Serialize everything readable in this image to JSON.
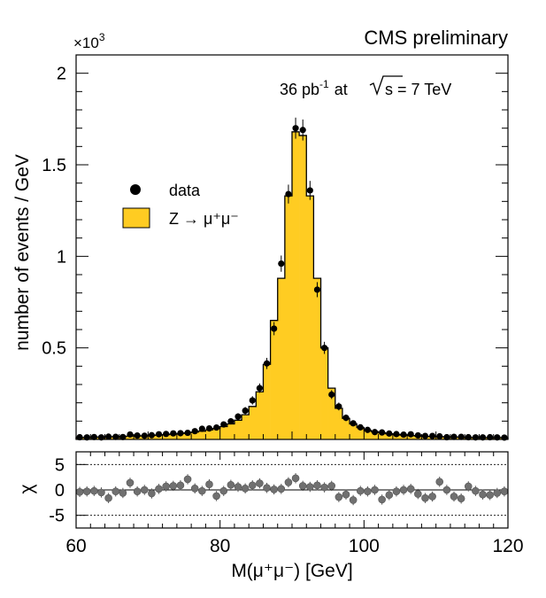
{
  "chart_data": {
    "type": "bar",
    "title": "CMS preliminary",
    "annotation": {
      "lumi": "36 pb",
      "lumi_sup": "-1",
      "at": "at",
      "energy_lhs": "s",
      "energy_rhs": "= 7 TeV"
    },
    "xlabel": "M(μ⁺μ⁻)     [GeV]",
    "xlim": [
      60,
      120
    ],
    "x_ticks": [
      "60",
      "80",
      "100",
      "120"
    ],
    "main": {
      "ylabel": "number of events / GeV",
      "y_multiplier": "×10",
      "y_multiplier_exp": "3",
      "ylim": [
        0,
        2.1
      ],
      "y_ticks": [
        "0.5",
        "1",
        "1.5",
        "2"
      ],
      "legend": {
        "placement": "middle-left",
        "data_label": "data",
        "mc_label": "Z → μ⁺μ⁻"
      },
      "bins_lo": [
        60,
        61,
        62,
        63,
        64,
        65,
        66,
        67,
        68,
        69,
        70,
        71,
        72,
        73,
        74,
        75,
        76,
        77,
        78,
        79,
        80,
        81,
        82,
        83,
        84,
        85,
        86,
        87,
        88,
        89,
        90,
        91,
        92,
        93,
        94,
        95,
        96,
        97,
        98,
        99,
        100,
        101,
        102,
        103,
        104,
        105,
        106,
        107,
        108,
        109,
        110,
        111,
        112,
        113,
        114,
        115,
        116,
        117,
        118,
        119
      ],
      "mc": [
        0.01,
        0.011,
        0.012,
        0.013,
        0.014,
        0.015,
        0.016,
        0.018,
        0.019,
        0.02,
        0.022,
        0.024,
        0.026,
        0.029,
        0.032,
        0.036,
        0.04,
        0.045,
        0.052,
        0.06,
        0.07,
        0.085,
        0.105,
        0.135,
        0.18,
        0.26,
        0.41,
        0.65,
        0.88,
        1.33,
        1.68,
        1.66,
        1.33,
        0.88,
        0.5,
        0.28,
        0.17,
        0.115,
        0.085,
        0.065,
        0.05,
        0.042,
        0.036,
        0.031,
        0.027,
        0.024,
        0.021,
        0.019,
        0.017,
        0.016,
        0.015,
        0.014,
        0.013,
        0.012,
        0.011,
        0.01,
        0.01,
        0.01,
        0.01,
        0.009
      ],
      "data": [
        0.012,
        0.011,
        0.013,
        0.011,
        0.015,
        0.014,
        0.013,
        0.027,
        0.021,
        0.02,
        0.023,
        0.028,
        0.03,
        0.033,
        0.034,
        0.036,
        0.045,
        0.058,
        0.06,
        0.065,
        0.082,
        0.099,
        0.125,
        0.157,
        0.213,
        0.28,
        0.415,
        0.605,
        0.96,
        1.34,
        1.7,
        1.69,
        1.36,
        0.818,
        0.5,
        0.245,
        0.18,
        0.118,
        0.088,
        0.066,
        0.052,
        0.04,
        0.038,
        0.032,
        0.029,
        0.026,
        0.028,
        0.022,
        0.019,
        0.019,
        0.017,
        0.012,
        0.014,
        0.014,
        0.012,
        0.011,
        0.011,
        0.012,
        0.011,
        0.01
      ]
    },
    "pull": {
      "ylabel": "χ",
      "ylim": [
        -7.5,
        7.5
      ],
      "y_ticks": [
        "5",
        "0",
        "-5"
      ],
      "y_tick_values": [
        5,
        0,
        -5
      ],
      "reference_lines": [
        5,
        -5
      ],
      "values": [
        -0.4,
        -0.3,
        -0.2,
        -0.5,
        -1.6,
        -0.3,
        -0.6,
        1.4,
        -0.3,
        0.0,
        -0.7,
        0.2,
        0.7,
        0.8,
        0.9,
        2.1,
        0.3,
        -0.2,
        1.1,
        -1.2,
        -0.2,
        1.0,
        0.6,
        0.3,
        0.9,
        1.3,
        0.4,
        0.1,
        0.2,
        1.5,
        2.3,
        0.8,
        0.6,
        0.9,
        0.5,
        0.8,
        -1.4,
        -0.9,
        -2.0,
        -0.2,
        -0.3,
        0.0,
        -1.9,
        -1.0,
        -0.3,
        0.0,
        0.2,
        -0.8,
        -1.6,
        -1.3,
        1.6,
        0.0,
        -1.3,
        -1.7,
        0.7,
        -0.2,
        -0.9,
        -1.0,
        -0.6,
        -0.3
      ]
    },
    "colors": {
      "mc_fill": "#ffcc22",
      "mc_line": "#000000",
      "data_marker": "#000000",
      "pull_marker": "#707070"
    }
  }
}
